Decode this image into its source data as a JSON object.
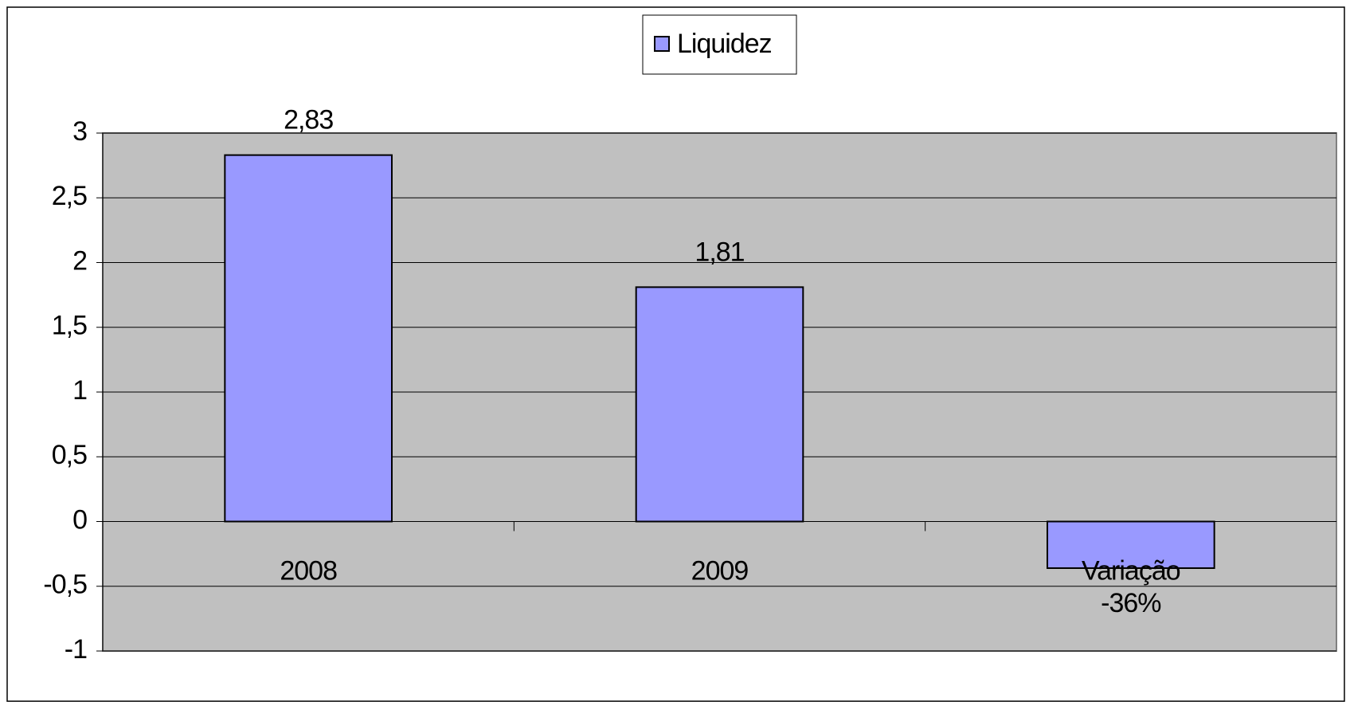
{
  "chart_data": {
    "type": "bar",
    "categories": [
      "2008",
      "2009",
      "Variação"
    ],
    "series": [
      {
        "name": "Liquidez",
        "color": "#9999ff",
        "values": [
          2.83,
          1.81,
          -0.36
        ],
        "value_labels": [
          "2,83",
          "1,81",
          "-36%"
        ]
      }
    ],
    "ylim": [
      -1,
      3
    ],
    "yticks": [
      {
        "value": -1,
        "label": "-1"
      },
      {
        "value": -0.5,
        "label": "-0,5"
      },
      0,
      {
        "value": 0.5,
        "label": "0,5"
      },
      1,
      {
        "value": 1.5,
        "label": "1,5"
      },
      2,
      {
        "value": 2.5,
        "label": "2,5"
      },
      3
    ],
    "grid": true,
    "legend": "top"
  }
}
